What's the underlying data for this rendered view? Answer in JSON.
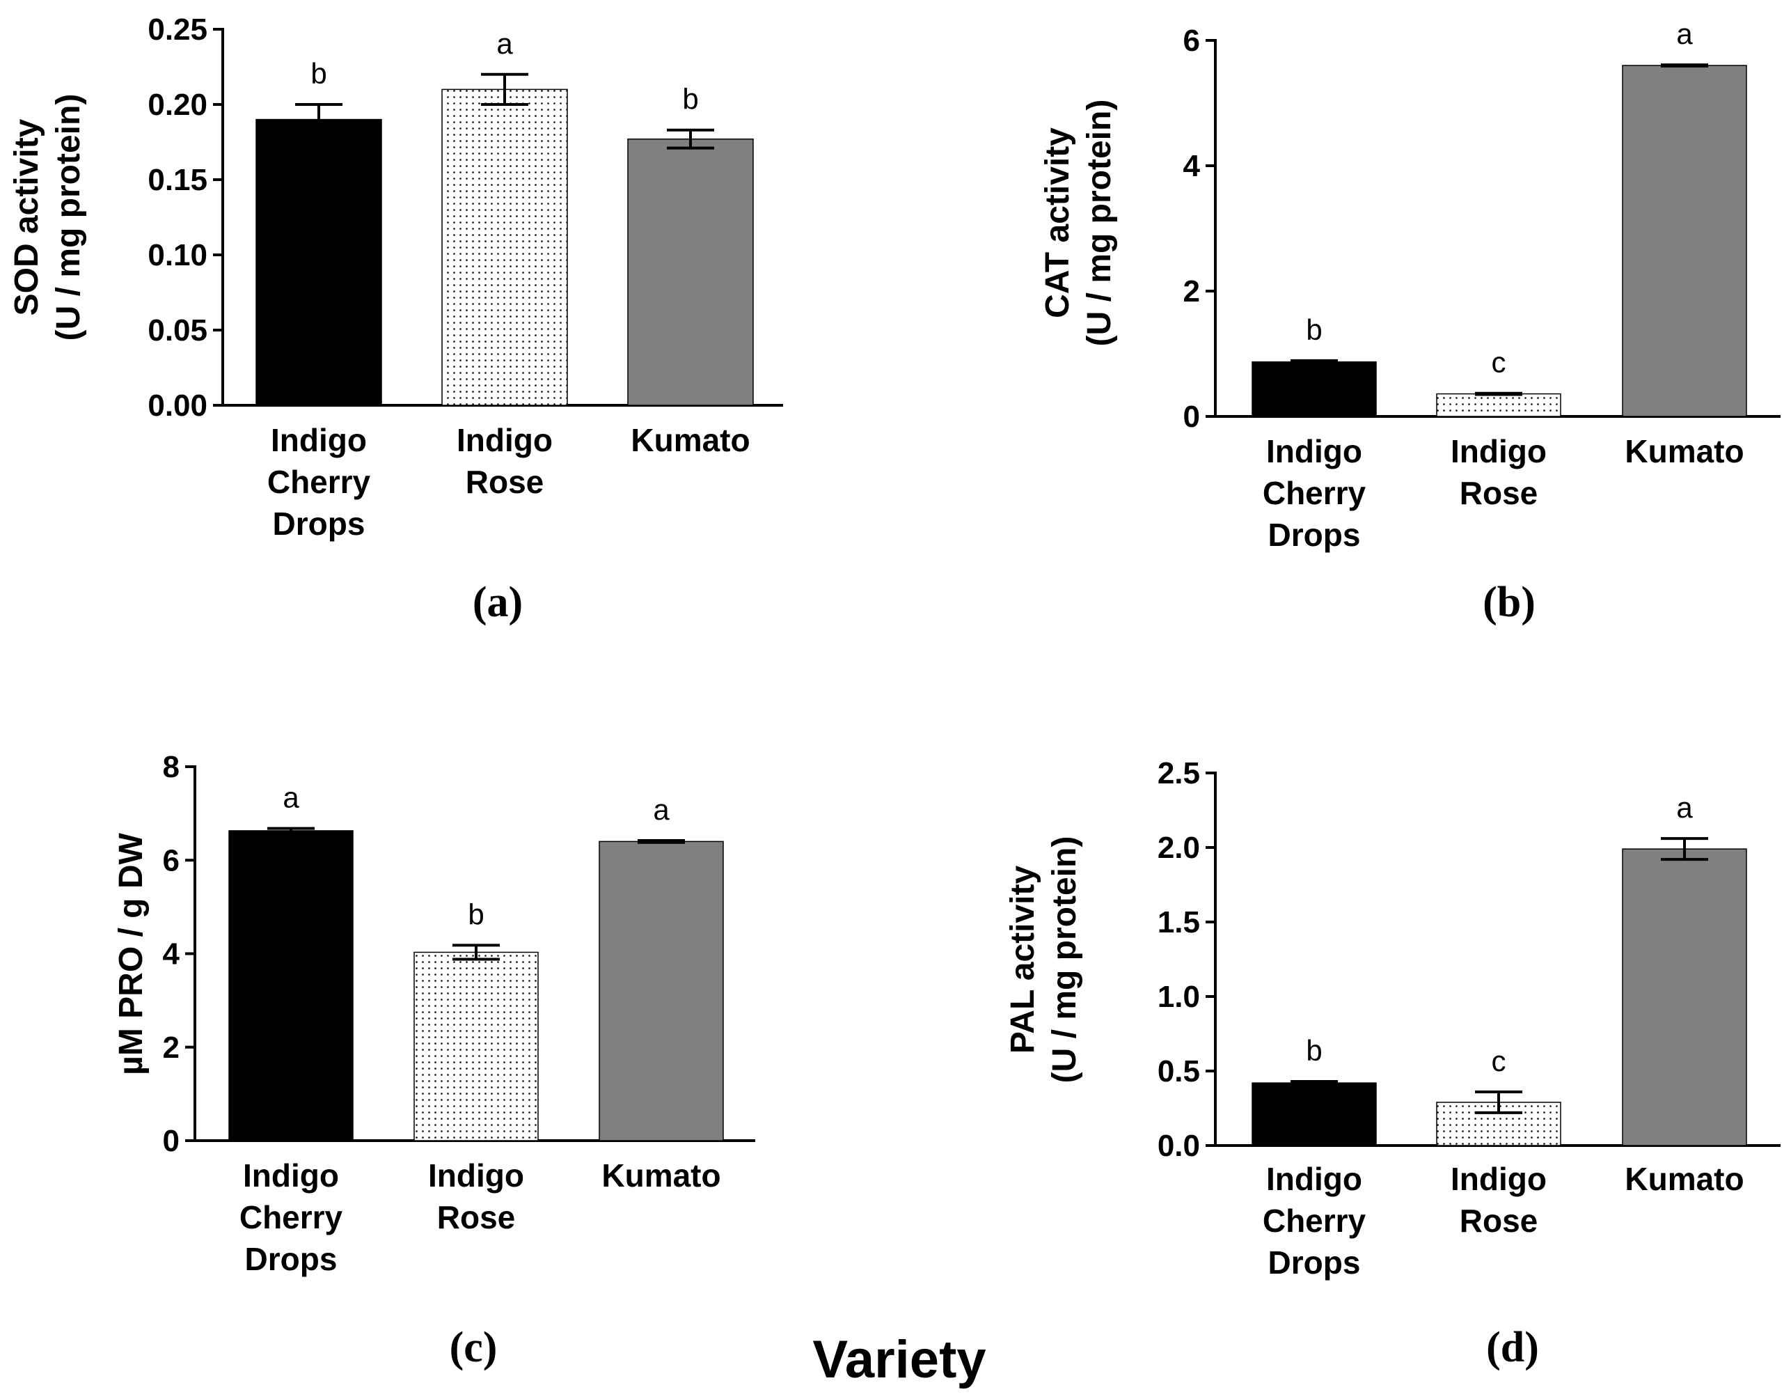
{
  "chart_data": [
    {
      "type": "bar",
      "panel_label": "(a)",
      "ylabel_line1": "SOD activity",
      "ylabel_line2": "(U / mg protein)",
      "xlabel": "",
      "ylim": [
        0,
        0.25
      ],
      "yticks": [
        "0.00",
        "0.05",
        "0.10",
        "0.15",
        "0.20",
        "0.25"
      ],
      "categories": [
        [
          "Indigo",
          "Cherry",
          "Drops"
        ],
        [
          "Indigo",
          "Rose"
        ],
        [
          "Kumato"
        ]
      ],
      "values": [
        0.19,
        0.21,
        0.177
      ],
      "errors": [
        0.01,
        0.01,
        0.006
      ],
      "significance": [
        "b",
        "a",
        "b"
      ],
      "fills": [
        "black",
        "dots",
        "gray"
      ]
    },
    {
      "type": "bar",
      "panel_label": "(b)",
      "ylabel_line1": "CAT activity",
      "ylabel_line2": "(U / mg protein)",
      "xlabel": "",
      "ylim": [
        0,
        6
      ],
      "yticks": [
        "0",
        "2",
        "4",
        "6"
      ],
      "categories": [
        [
          "Indigo",
          "Cherry",
          "Drops"
        ],
        [
          "Indigo",
          "Rose"
        ],
        [
          "Kumato"
        ]
      ],
      "values": [
        0.87,
        0.36,
        5.6
      ],
      "errors": [
        0.02,
        0.01,
        0.01
      ],
      "significance": [
        "b",
        "c",
        "a"
      ],
      "fills": [
        "black",
        "dots",
        "gray"
      ]
    },
    {
      "type": "bar",
      "panel_label": "(c)",
      "ylabel_line1": "",
      "ylabel_line2": "µM PRO / g DW",
      "xlabel": "",
      "ylim": [
        0,
        8
      ],
      "yticks": [
        "0",
        "2",
        "4",
        "6",
        "8"
      ],
      "categories": [
        [
          "Indigo",
          "Cherry",
          "Drops"
        ],
        [
          "Indigo",
          "Rose"
        ],
        [
          "Kumato"
        ]
      ],
      "values": [
        6.63,
        4.03,
        6.4
      ],
      "errors": [
        0.05,
        0.15,
        0.02
      ],
      "significance": [
        "a",
        "b",
        "a"
      ],
      "fills": [
        "black",
        "dots",
        "gray"
      ]
    },
    {
      "type": "bar",
      "panel_label": "(d)",
      "ylabel_line1": "PAL activity",
      "ylabel_line2": "(U / mg protein)",
      "xlabel": "",
      "ylim": [
        0,
        2.5
      ],
      "yticks": [
        "0.0",
        "0.5",
        "1.0",
        "1.5",
        "2.0",
        "2.5"
      ],
      "categories": [
        [
          "Indigo",
          "Cherry",
          "Drops"
        ],
        [
          "Indigo",
          "Rose"
        ],
        [
          "Kumato"
        ]
      ],
      "values": [
        0.42,
        0.29,
        1.99
      ],
      "errors": [
        0.01,
        0.07,
        0.07
      ],
      "significance": [
        "b",
        "c",
        "a"
      ],
      "fills": [
        "black",
        "dots",
        "gray"
      ]
    }
  ],
  "shared_xlabel": "Variety",
  "colors": {
    "black_bar": "#000000",
    "gray_bar": "#808080",
    "dot_fill": "#ffffff",
    "dot_color": "#000000"
  }
}
